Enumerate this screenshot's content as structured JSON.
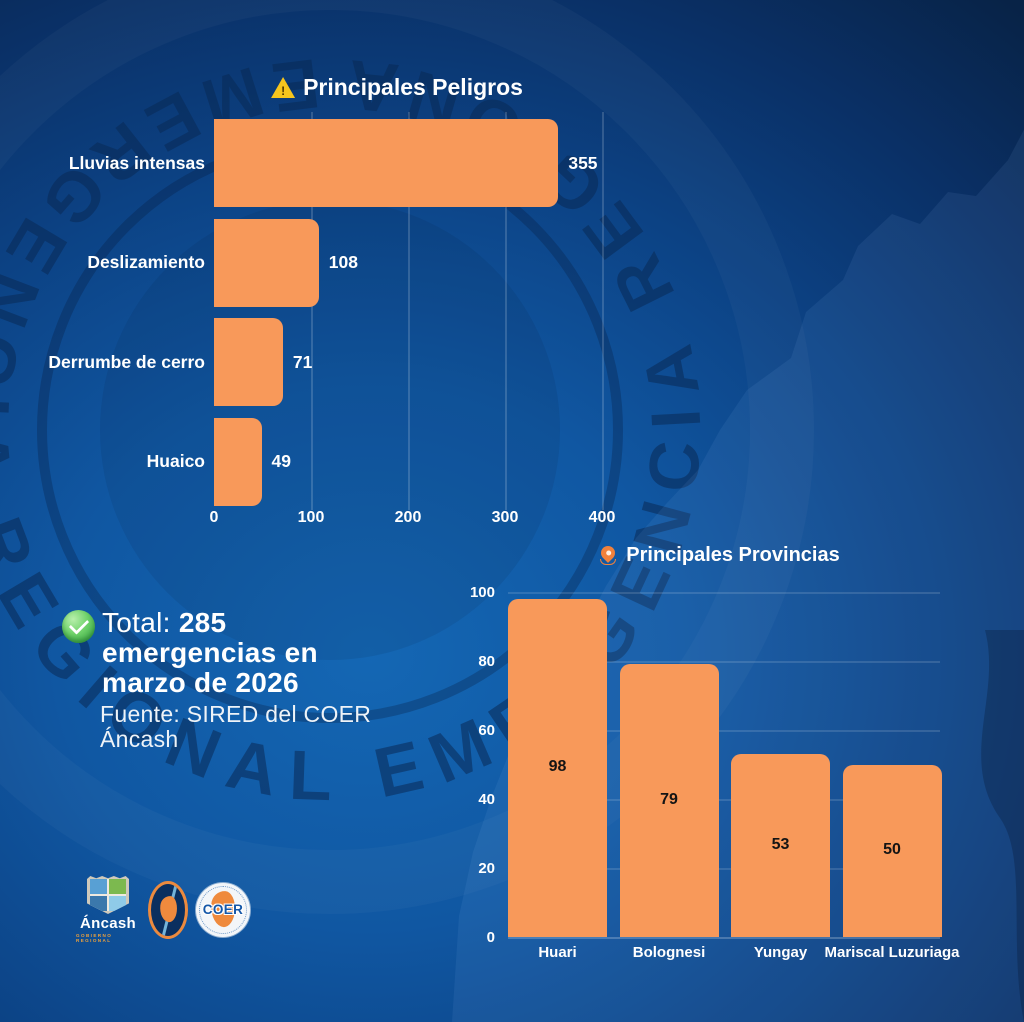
{
  "colors": {
    "bar_orange": "#F8995A",
    "background_blue": "#0c4284",
    "navy_dark": "#0a2c5a",
    "accent_green": "#49B350",
    "pin_orange": "#F0813C",
    "warning_yellow": "#F6C51D",
    "value_label_dark": "#141414",
    "text_white": "#FFFFFF"
  },
  "chart_data": [
    {
      "type": "bar",
      "orientation": "horizontal",
      "title": "Principales Peligros",
      "title_icon": "warning",
      "categories": [
        "Lluvias intensas",
        "Deslizamiento",
        "Derrumbe de cerro",
        "Huaico"
      ],
      "values": [
        355,
        108,
        71,
        49
      ],
      "xticks": [
        0,
        100,
        200,
        300,
        400
      ],
      "xlim": [
        0,
        450
      ],
      "grid": true,
      "legend": false,
      "bar_color": "#F8995A",
      "value_label_color": "#FFFFFF"
    },
    {
      "type": "bar",
      "orientation": "vertical",
      "title": "Principales Provincias",
      "title_icon": "location-pin",
      "categories": [
        "Huari",
        "Bolognesi",
        "Yungay",
        "Mariscal Luzuriaga"
      ],
      "values": [
        98,
        79,
        53,
        50
      ],
      "yticks": [
        0,
        20,
        40,
        60,
        80,
        100
      ],
      "ylim": [
        0,
        100
      ],
      "grid": true,
      "legend": false,
      "bar_color": "#F8995A",
      "value_label_color": "#141414"
    }
  ],
  "summary": {
    "total_label": "Total: ",
    "total_value": "285",
    "line2": "emergencias en",
    "line3": "marzo de 2026"
  },
  "source": {
    "line1": "Fuente: SIRED del COER",
    "line2": "Áncash"
  },
  "warning_icon_glyph": "!",
  "watermark": {
    "text": "EMERGENCIA REGIONAL EMERGENCIA REGIONAL"
  },
  "logos": {
    "ancash": {
      "name": "Áncash",
      "sub": "GOBIERNO REGIONAL"
    },
    "coer": {
      "text": "COER"
    }
  }
}
